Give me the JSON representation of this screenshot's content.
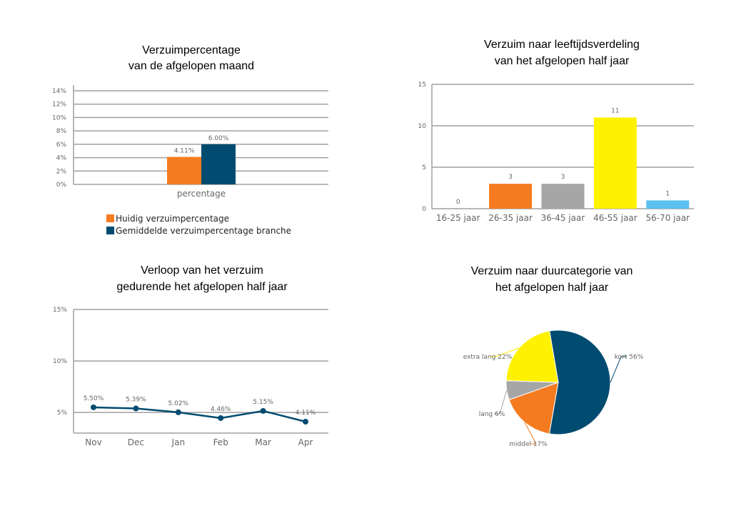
{
  "chart_data": [
    {
      "type": "bar",
      "title": [
        "Verzuimpercentage",
        "van de afgelopen maand"
      ],
      "categories": [
        "percentage"
      ],
      "series": [
        {
          "name": "Huidig verzuimpercentage",
          "values": [
            4.11
          ],
          "label": "4.11%",
          "color": "#f47b20"
        },
        {
          "name": "Gemiddelde verzuimpercentage branche",
          "values": [
            6.0
          ],
          "label": "6.00%",
          "color": "#004b70"
        }
      ],
      "ylim": [
        0,
        14
      ],
      "yticks": [
        "0%",
        "2%",
        "4%",
        "6%",
        "8%",
        "10%",
        "12%",
        "14%"
      ],
      "grid": true,
      "legend": "bottom"
    },
    {
      "type": "bar",
      "title": [
        "Verzuim naar leeftijdsverdeling",
        "van het afgelopen half jaar"
      ],
      "categories": [
        "16-25 jaar",
        "26-35 jaar",
        "36-45 jaar",
        "46-55 jaar",
        "56-70 jaar"
      ],
      "values": [
        0,
        3,
        3,
        11,
        1
      ],
      "labels": [
        "0",
        "3",
        "3",
        "11",
        "1"
      ],
      "colors": [
        "#f47b20",
        "#f47b20",
        "#a6a6a6",
        "#fff200",
        "#5bc0f0"
      ],
      "ylim": [
        0,
        15
      ],
      "yticks": [
        "0",
        "5",
        "10",
        "15"
      ],
      "grid": true
    },
    {
      "type": "line",
      "title": [
        "Verloop van het verzuim",
        "gedurende het afgelopen half jaar"
      ],
      "categories": [
        "Nov",
        "Dec",
        "Jan",
        "Feb",
        "Mar",
        "Apr"
      ],
      "values": [
        5.5,
        5.39,
        5.02,
        4.46,
        5.15,
        4.11
      ],
      "labels": [
        "5.50%",
        "5.39%",
        "5.02%",
        "4.46%",
        "5.15%",
        "4.11%"
      ],
      "color": "#004b70",
      "ylim": [
        3,
        15
      ],
      "yticks": [
        "5%",
        "10%",
        "15%"
      ],
      "grid": true
    },
    {
      "type": "pie",
      "title": [
        "Verzuim naar duurcategorie van",
        "het afgelopen half jaar"
      ],
      "slices": [
        {
          "name": "kort",
          "value": 56,
          "label": "kort 56%",
          "color": "#004b70"
        },
        {
          "name": "middel",
          "value": 17,
          "label": "middel 17%",
          "color": "#f47b20"
        },
        {
          "name": "lang",
          "value": 6,
          "label": "lang 6%",
          "color": "#a6a6a6"
        },
        {
          "name": "extra lang",
          "value": 22,
          "label": "extra lang 22%",
          "color": "#fff200"
        }
      ]
    }
  ]
}
